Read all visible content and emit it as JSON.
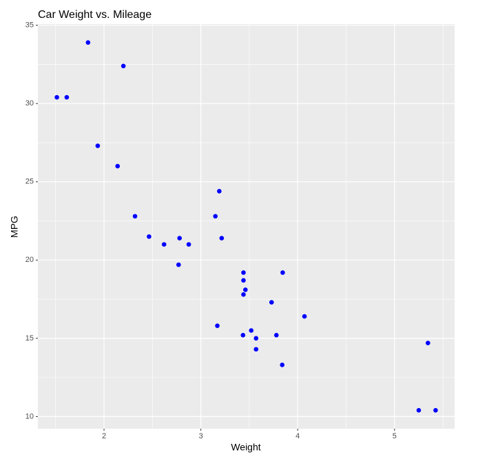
{
  "chart_data": {
    "type": "scatter",
    "title": "Car Weight vs. Mileage",
    "x_label": "Weight",
    "y_label": "MPG",
    "x": [
      2.62,
      2.875,
      2.32,
      3.215,
      3.44,
      3.46,
      3.57,
      3.19,
      3.15,
      3.44,
      3.44,
      4.07,
      3.73,
      3.78,
      5.25,
      5.424,
      5.345,
      2.2,
      1.615,
      1.835,
      2.465,
      3.52,
      3.435,
      3.84,
      3.845,
      1.935,
      2.14,
      1.513,
      3.17,
      2.77,
      3.57,
      2.78
    ],
    "y": [
      21.0,
      21.0,
      22.8,
      21.4,
      18.7,
      18.1,
      14.3,
      24.4,
      22.8,
      19.2,
      17.8,
      16.4,
      17.3,
      15.2,
      10.4,
      10.4,
      14.7,
      32.4,
      30.4,
      33.9,
      21.5,
      15.5,
      15.2,
      13.3,
      19.2,
      27.3,
      26.0,
      30.4,
      15.8,
      19.7,
      15.0,
      21.4
    ],
    "color": "#0000ff",
    "xlim": [
      1.317,
      5.62
    ],
    "ylim": [
      9.225,
      35.075
    ],
    "xticks": [
      2,
      3,
      4,
      5
    ],
    "yticks": [
      10,
      15,
      20,
      25,
      30,
      35
    ],
    "minor_xticks": [
      1.5,
      2.5,
      3.5,
      4.5,
      5.5
    ],
    "minor_yticks": [
      12.5,
      17.5,
      22.5,
      27.5,
      32.5
    ],
    "grid": true
  }
}
